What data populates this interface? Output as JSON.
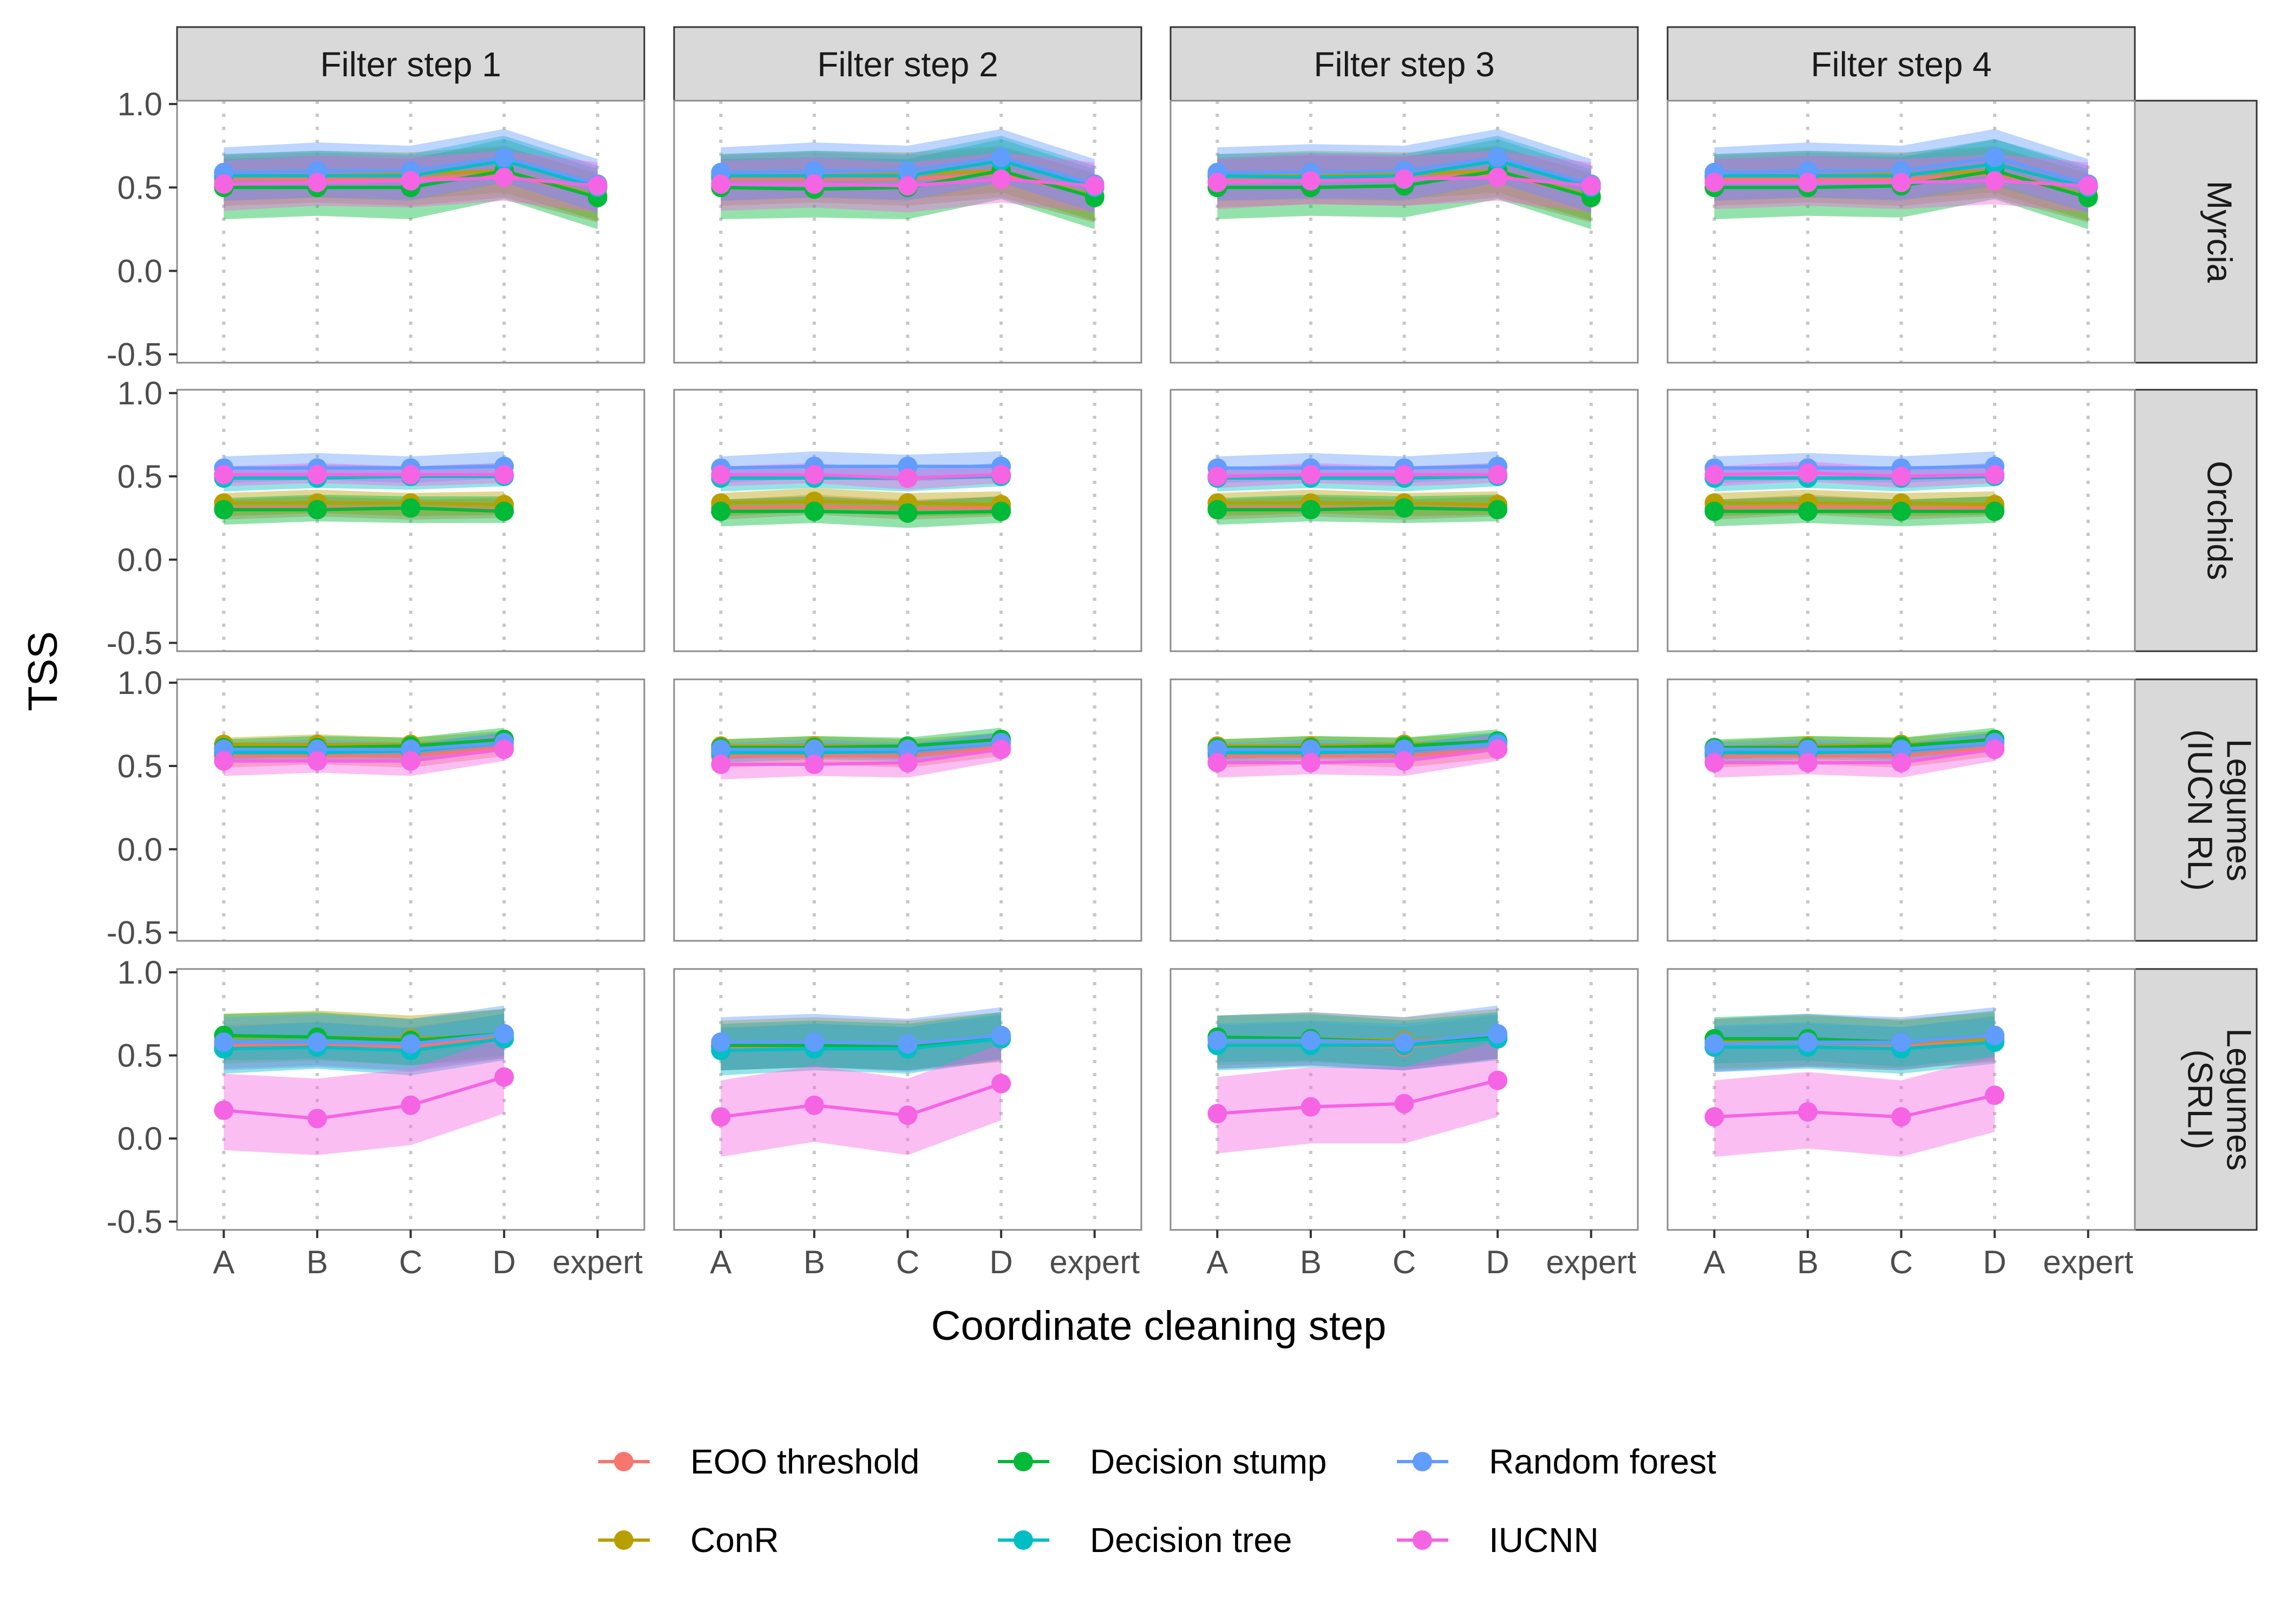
{
  "chart_data": {
    "type": "line",
    "ylabel": "TSS",
    "xlabel": "Coordinate cleaning step",
    "x_categories": [
      "A",
      "B",
      "C",
      "D",
      "expert"
    ],
    "y_ticks": [
      "1.0",
      "0.5",
      "0.0",
      "-0.5"
    ],
    "y_tick_values": [
      1.0,
      0.5,
      0.0,
      -0.5
    ],
    "ylim": [
      -0.55,
      1.02
    ],
    "col_facets": [
      "Filter step 1",
      "Filter step 2",
      "Filter step 3",
      "Filter step 4"
    ],
    "row_facets": [
      {
        "id": "myrcia",
        "lines": [
          "Myrcia"
        ]
      },
      {
        "id": "orchids",
        "lines": [
          "Orchids"
        ]
      },
      {
        "id": "legumes_iucn",
        "lines": [
          "Legumes",
          "(IUCN RL)"
        ]
      },
      {
        "id": "legumes_srli",
        "lines": [
          "Legumes",
          "(SRLI)"
        ]
      }
    ],
    "grid": "vertical dotted at categories",
    "legend_position": "bottom",
    "series": [
      {
        "name": "EOO threshold",
        "color": "#F8766D"
      },
      {
        "name": "ConR",
        "color": "#B79F00"
      },
      {
        "name": "Decision stump",
        "color": "#00BA38"
      },
      {
        "name": "Decision tree",
        "color": "#00BFC4"
      },
      {
        "name": "Random forest",
        "color": "#619CFF"
      },
      {
        "name": "IUCNN",
        "color": "#F564E3"
      }
    ],
    "panels": {
      "myrcia": [
        {
          "EOO threshold": [
            0.55,
            0.55,
            0.55,
            0.58,
            0.45
          ],
          "ConR": [
            0.57,
            0.57,
            0.58,
            0.6,
            0.45
          ],
          "Decision stump": [
            0.5,
            0.5,
            0.5,
            0.6,
            0.44
          ],
          "Decision tree": [
            0.57,
            0.57,
            0.57,
            0.66,
            0.5
          ],
          "Random forest": [
            0.59,
            0.6,
            0.6,
            0.68,
            0.52
          ],
          "IUCNN": [
            0.52,
            0.53,
            0.54,
            0.56,
            0.51
          ]
        },
        {
          "EOO threshold": [
            0.55,
            0.55,
            0.55,
            0.58,
            0.45
          ],
          "ConR": [
            0.57,
            0.57,
            0.58,
            0.6,
            0.45
          ],
          "Decision stump": [
            0.5,
            0.49,
            0.5,
            0.6,
            0.44
          ],
          "Decision tree": [
            0.57,
            0.57,
            0.57,
            0.66,
            0.5
          ],
          "Random forest": [
            0.59,
            0.6,
            0.6,
            0.68,
            0.52
          ],
          "IUCNN": [
            0.52,
            0.52,
            0.51,
            0.55,
            0.51
          ]
        },
        {
          "EOO threshold": [
            0.54,
            0.54,
            0.55,
            0.58,
            0.45
          ],
          "ConR": [
            0.57,
            0.57,
            0.58,
            0.6,
            0.45
          ],
          "Decision stump": [
            0.5,
            0.5,
            0.51,
            0.6,
            0.44
          ],
          "Decision tree": [
            0.57,
            0.56,
            0.57,
            0.66,
            0.5
          ],
          "Random forest": [
            0.59,
            0.59,
            0.6,
            0.68,
            0.52
          ],
          "IUCNN": [
            0.53,
            0.54,
            0.55,
            0.56,
            0.51
          ]
        },
        {
          "EOO threshold": [
            0.55,
            0.55,
            0.55,
            0.58,
            0.45
          ],
          "ConR": [
            0.57,
            0.57,
            0.58,
            0.6,
            0.45
          ],
          "Decision stump": [
            0.5,
            0.5,
            0.51,
            0.6,
            0.44
          ],
          "Decision tree": [
            0.57,
            0.57,
            0.57,
            0.64,
            0.5
          ],
          "Random forest": [
            0.59,
            0.6,
            0.6,
            0.68,
            0.52
          ],
          "IUCNN": [
            0.53,
            0.53,
            0.53,
            0.54,
            0.51
          ]
        }
      ],
      "orchids": [
        {
          "EOO threshold": [
            0.31,
            0.31,
            0.31,
            0.3,
            null
          ],
          "ConR": [
            0.34,
            0.34,
            0.34,
            0.33,
            null
          ],
          "Decision stump": [
            0.3,
            0.3,
            0.31,
            0.29,
            null
          ],
          "Decision tree": [
            0.49,
            0.49,
            0.5,
            0.5,
            null
          ],
          "Random forest": [
            0.55,
            0.55,
            0.55,
            0.56,
            null
          ],
          "IUCNN": [
            0.51,
            0.51,
            0.51,
            0.51,
            null
          ]
        },
        {
          "EOO threshold": [
            0.31,
            0.32,
            0.31,
            0.31,
            null
          ],
          "ConR": [
            0.34,
            0.35,
            0.34,
            0.33,
            null
          ],
          "Decision stump": [
            0.29,
            0.29,
            0.28,
            0.29,
            null
          ],
          "Decision tree": [
            0.49,
            0.49,
            0.49,
            0.5,
            null
          ],
          "Random forest": [
            0.55,
            0.56,
            0.56,
            0.56,
            null
          ],
          "IUCNN": [
            0.51,
            0.51,
            0.49,
            0.51,
            null
          ]
        },
        {
          "EOO threshold": [
            0.31,
            0.31,
            0.31,
            0.31,
            null
          ],
          "ConR": [
            0.34,
            0.34,
            0.34,
            0.33,
            null
          ],
          "Decision stump": [
            0.3,
            0.3,
            0.31,
            0.3,
            null
          ],
          "Decision tree": [
            0.49,
            0.49,
            0.49,
            0.5,
            null
          ],
          "Random forest": [
            0.55,
            0.55,
            0.55,
            0.56,
            null
          ],
          "IUCNN": [
            0.5,
            0.51,
            0.51,
            0.51,
            null
          ]
        },
        {
          "EOO threshold": [
            0.31,
            0.32,
            0.31,
            0.31,
            null
          ],
          "ConR": [
            0.34,
            0.34,
            0.34,
            0.33,
            null
          ],
          "Decision stump": [
            0.29,
            0.29,
            0.29,
            0.29,
            null
          ],
          "Decision tree": [
            0.49,
            0.49,
            0.49,
            0.5,
            null
          ],
          "Random forest": [
            0.55,
            0.55,
            0.55,
            0.56,
            null
          ],
          "IUCNN": [
            0.51,
            0.52,
            0.5,
            0.51,
            null
          ]
        }
      ],
      "legumes_iucn": [
        {
          "EOO threshold": [
            0.56,
            0.56,
            0.56,
            0.61,
            null
          ],
          "ConR": [
            0.63,
            0.63,
            0.63,
            0.65,
            null
          ],
          "Decision stump": [
            0.61,
            0.61,
            0.62,
            0.66,
            null
          ],
          "Decision tree": [
            0.58,
            0.58,
            0.59,
            0.64,
            null
          ],
          "Random forest": [
            0.6,
            0.6,
            0.6,
            0.64,
            null
          ],
          "IUCNN": [
            0.53,
            0.53,
            0.53,
            0.6,
            null
          ]
        },
        {
          "EOO threshold": [
            0.56,
            0.56,
            0.56,
            0.61,
            null
          ],
          "ConR": [
            0.62,
            0.62,
            0.62,
            0.64,
            null
          ],
          "Decision stump": [
            0.61,
            0.61,
            0.62,
            0.66,
            null
          ],
          "Decision tree": [
            0.58,
            0.58,
            0.59,
            0.64,
            null
          ],
          "Random forest": [
            0.6,
            0.6,
            0.6,
            0.64,
            null
          ],
          "IUCNN": [
            0.51,
            0.51,
            0.52,
            0.6,
            null
          ]
        },
        {
          "EOO threshold": [
            0.56,
            0.56,
            0.56,
            0.6,
            null
          ],
          "ConR": [
            0.62,
            0.62,
            0.63,
            0.64,
            null
          ],
          "Decision stump": [
            0.61,
            0.61,
            0.62,
            0.65,
            null
          ],
          "Decision tree": [
            0.58,
            0.58,
            0.59,
            0.64,
            null
          ],
          "Random forest": [
            0.6,
            0.6,
            0.6,
            0.63,
            null
          ],
          "IUCNN": [
            0.52,
            0.52,
            0.53,
            0.6,
            null
          ]
        },
        {
          "EOO threshold": [
            0.56,
            0.56,
            0.56,
            0.61,
            null
          ],
          "ConR": [
            0.61,
            0.62,
            0.63,
            0.65,
            null
          ],
          "Decision stump": [
            0.61,
            0.61,
            0.62,
            0.66,
            null
          ],
          "Decision tree": [
            0.58,
            0.58,
            0.59,
            0.64,
            null
          ],
          "Random forest": [
            0.6,
            0.6,
            0.6,
            0.64,
            null
          ],
          "IUCNN": [
            0.52,
            0.52,
            0.52,
            0.6,
            null
          ]
        }
      ],
      "legumes_srli": [
        {
          "EOO threshold": [
            0.56,
            0.56,
            0.55,
            0.61,
            null
          ],
          "ConR": [
            0.61,
            0.61,
            0.6,
            0.62,
            null
          ],
          "Decision stump": [
            0.62,
            0.61,
            0.59,
            0.63,
            null
          ],
          "Decision tree": [
            0.54,
            0.55,
            0.53,
            0.6,
            null
          ],
          "Random forest": [
            0.58,
            0.58,
            0.57,
            0.63,
            null
          ],
          "IUCNN": [
            0.17,
            0.12,
            0.2,
            0.37,
            null
          ]
        },
        {
          "EOO threshold": [
            0.55,
            0.55,
            0.55,
            0.6,
            null
          ],
          "ConR": [
            0.57,
            0.57,
            0.57,
            0.6,
            null
          ],
          "Decision stump": [
            0.56,
            0.56,
            0.56,
            0.61,
            null
          ],
          "Decision tree": [
            0.53,
            0.54,
            0.54,
            0.6,
            null
          ],
          "Random forest": [
            0.58,
            0.58,
            0.57,
            0.62,
            null
          ],
          "IUCNN": [
            0.13,
            0.2,
            0.14,
            0.33,
            null
          ]
        },
        {
          "EOO threshold": [
            0.56,
            0.56,
            0.55,
            0.6,
            null
          ],
          "ConR": [
            0.6,
            0.6,
            0.59,
            0.62,
            null
          ],
          "Decision stump": [
            0.61,
            0.6,
            0.58,
            0.61,
            null
          ],
          "Decision tree": [
            0.56,
            0.56,
            0.56,
            0.6,
            null
          ],
          "Random forest": [
            0.59,
            0.59,
            0.58,
            0.63,
            null
          ],
          "IUCNN": [
            0.15,
            0.19,
            0.21,
            0.35,
            null
          ]
        },
        {
          "EOO threshold": [
            0.55,
            0.55,
            0.55,
            0.6,
            null
          ],
          "ConR": [
            0.58,
            0.58,
            0.58,
            0.6,
            null
          ],
          "Decision stump": [
            0.6,
            0.6,
            0.58,
            0.62,
            null
          ],
          "Decision tree": [
            0.55,
            0.55,
            0.54,
            0.58,
            null
          ],
          "Random forest": [
            0.57,
            0.58,
            0.58,
            0.62,
            null
          ],
          "IUCNN": [
            0.13,
            0.16,
            0.13,
            0.26,
            null
          ]
        }
      ]
    }
  }
}
